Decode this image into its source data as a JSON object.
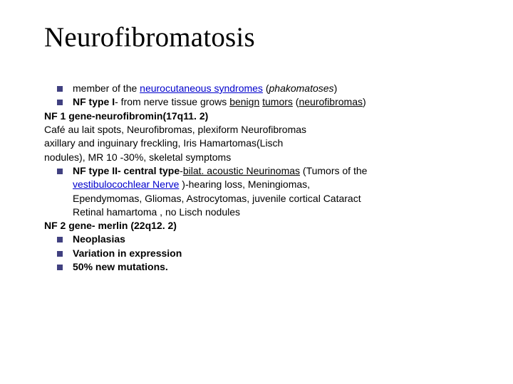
{
  "colors": {
    "background": "#ffffff",
    "text": "#000000",
    "bullet": "#404080",
    "link": "#0000cc"
  },
  "typography": {
    "title_font": "Times New Roman",
    "title_fontsize": 39,
    "body_font": "Verdana",
    "body_fontsize": 14,
    "line_height": 1.38
  },
  "title": "Neurofibromatosis",
  "lines": {
    "l1_a": "member of the ",
    "l1_link": "neurocutaneous syndromes",
    "l1_b": " (",
    "l1_ital": "phakomatoses",
    "l1_c": ")",
    "l2_a": "NF type I",
    "l2_b": "- from nerve tissue grows ",
    "l2_benign": "benign",
    "l2_sp": " ",
    "l2_tumors": "tumors",
    "l2_c": " (",
    "l2_nf": "neurofibromas",
    "l2_d": ")",
    "l3": "NF 1 gene-neurofibromin(17q11. 2)",
    "l4": "Café au lait spots, Neurofibromas, plexiform Neurofibromas",
    "l5": "axillary and inguinary freckling, Iris Hamartomas(Lisch",
    "l6": "nodules), MR 10 -30%,  skeletal symptoms",
    "l7_a": "NF type II- central type",
    "l7_b": "-",
    "l7_bilat": "bilat. acoustic Neurinomas",
    "l7_c": " (Tumors of the",
    "l8_link": "vestibulocochlear Nerve",
    "l8_b": " )-hearing loss, Meningiomas,",
    "l9": "Ependymomas, Gliomas, Astrocytomas, juvenile cortical Cataract",
    "l10": "Retinal hamartoma , no Lisch nodules",
    "l11": "NF 2 gene- merlin (22q12. 2)",
    "l12": "Neoplasias",
    "l13": "Variation in expression",
    "l14": "50% new mutations."
  }
}
